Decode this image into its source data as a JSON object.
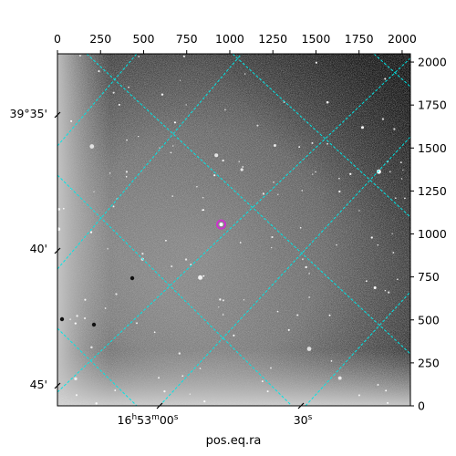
{
  "chart_data": {
    "type": "image",
    "image_description_layer": "grayscale astronomical sky image with celestial coordinate grid overlay",
    "pixel_axes": {
      "x_top": {
        "range": [
          0,
          2048
        ],
        "ticks": [
          0,
          250,
          500,
          750,
          1000,
          1250,
          1500,
          1750,
          2000
        ]
      },
      "y_right": {
        "range": [
          0,
          2048
        ],
        "ticks": [
          0,
          250,
          500,
          750,
          1000,
          1250,
          1500,
          1750,
          2000
        ]
      }
    },
    "world_axes": {
      "xlabel": "pos.eq.ra",
      "ra_ticks": [
        {
          "value_s": 0,
          "label_main": "16",
          "label_h": "h",
          "label_m_val": "53",
          "label_m": "m",
          "label_s_val": "00",
          "label_s": "s"
        },
        {
          "value_s": 30,
          "label_main": "30",
          "label_s": "s"
        }
      ],
      "dec_ticks": [
        {
          "value": "39°35'",
          "label": "39°35'"
        },
        {
          "value": "40'",
          "label": "40'"
        },
        {
          "value": "45'",
          "label": "45'"
        }
      ]
    },
    "grid": true,
    "grid_color": "#00e5e5",
    "marker": {
      "shape": "circle",
      "color": "#cc33cc",
      "x": 950,
      "y": 1055
    }
  },
  "colors": {
    "grid": "#00e5e5",
    "marker": "#cc33cc",
    "frame": "#000000"
  }
}
